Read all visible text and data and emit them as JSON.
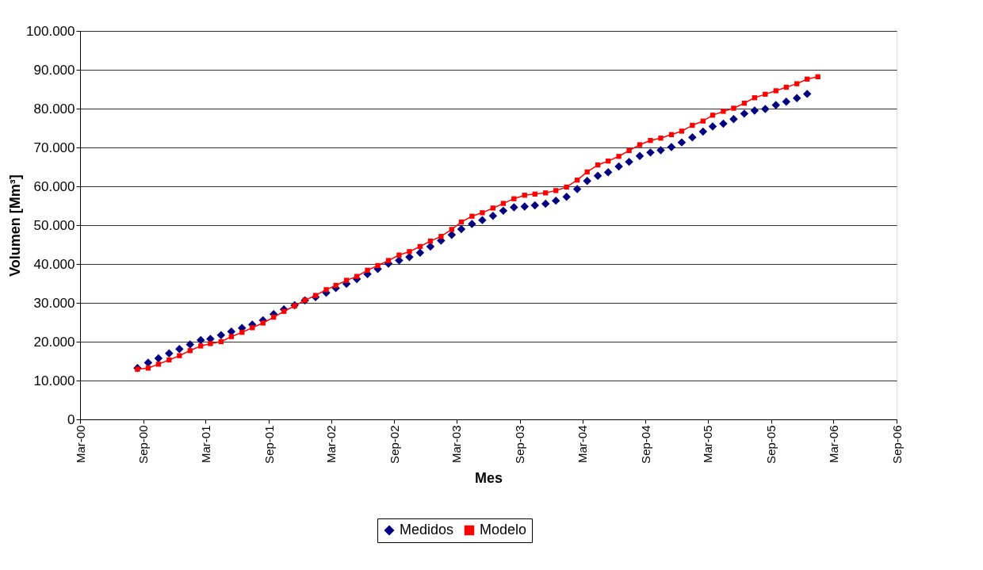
{
  "chart_data": {
    "type": "line",
    "xlabel": "Mes",
    "ylabel": "Volumen [Mm³]",
    "xlim": [
      "2000-03-01",
      "2006-09-01"
    ],
    "xticks": [
      {
        "value": "2000-03-01",
        "label": "Mar-00"
      },
      {
        "value": "2000-09-01",
        "label": "Sep-00"
      },
      {
        "value": "2001-03-01",
        "label": "Mar-01"
      },
      {
        "value": "2001-09-01",
        "label": "Sep-01"
      },
      {
        "value": "2002-03-01",
        "label": "Mar-02"
      },
      {
        "value": "2002-09-01",
        "label": "Sep-02"
      },
      {
        "value": "2003-03-01",
        "label": "Mar-03"
      },
      {
        "value": "2003-09-01",
        "label": "Sep-03"
      },
      {
        "value": "2004-03-01",
        "label": "Mar-04"
      },
      {
        "value": "2004-09-01",
        "label": "Sep-04"
      },
      {
        "value": "2005-03-01",
        "label": "Mar-05"
      },
      {
        "value": "2005-09-01",
        "label": "Sep-05"
      },
      {
        "value": "2006-03-01",
        "label": "Mar-06"
      },
      {
        "value": "2006-09-01",
        "label": "Sep-06"
      }
    ],
    "ylim": [
      0,
      100000
    ],
    "yticks": [
      0,
      {
        "value": 10000,
        "label": "10.000"
      },
      {
        "value": 20000,
        "label": "20.000"
      },
      {
        "value": 30000,
        "label": "30.000"
      },
      {
        "value": 40000,
        "label": "40.000"
      },
      {
        "value": 50000,
        "label": "50.000"
      },
      {
        "value": 60000,
        "label": "60.000"
      },
      {
        "value": 70000,
        "label": "70.000"
      },
      {
        "value": 80000,
        "label": "80.000"
      },
      {
        "value": 90000,
        "label": "90.000"
      },
      {
        "value": 100000,
        "label": "100.000"
      }
    ],
    "grid": "y",
    "legend": "bottom",
    "series": [
      {
        "name": "Medidos",
        "type": "scatter",
        "marker": "diamond",
        "color": "#000080",
        "x": [
          "2000-08-15",
          "2000-09-15",
          "2000-10-15",
          "2000-11-15",
          "2000-12-15",
          "2001-01-15",
          "2001-02-15",
          "2001-03-15",
          "2001-04-15",
          "2001-05-15",
          "2001-06-15",
          "2001-07-15",
          "2001-08-15",
          "2001-09-15",
          "2001-10-15",
          "2001-11-15",
          "2001-12-15",
          "2002-01-15",
          "2002-02-15",
          "2002-03-15",
          "2002-04-15",
          "2002-05-15",
          "2002-06-15",
          "2002-07-15",
          "2002-08-15",
          "2002-09-15",
          "2002-10-15",
          "2002-11-15",
          "2002-12-15",
          "2003-01-15",
          "2003-02-15",
          "2003-03-15",
          "2003-04-15",
          "2003-05-15",
          "2003-06-15",
          "2003-07-15",
          "2003-08-15",
          "2003-09-15",
          "2003-10-15",
          "2003-11-15",
          "2003-12-15",
          "2004-01-15",
          "2004-02-15",
          "2004-03-15",
          "2004-04-15",
          "2004-05-15",
          "2004-06-15",
          "2004-07-15",
          "2004-08-15",
          "2004-09-15",
          "2004-10-15",
          "2004-11-15",
          "2004-12-15",
          "2005-01-15",
          "2005-02-15",
          "2005-03-15",
          "2005-04-15",
          "2005-05-15",
          "2005-06-15",
          "2005-07-15",
          "2005-08-15",
          "2005-09-15",
          "2005-10-15",
          "2005-11-15",
          "2005-12-15"
        ],
        "values": [
          13200,
          14600,
          15700,
          17000,
          18100,
          19300,
          20400,
          20700,
          21700,
          22600,
          23500,
          24400,
          25500,
          27100,
          28300,
          29400,
          30600,
          31500,
          32600,
          33800,
          34900,
          36100,
          37400,
          38700,
          40100,
          40900,
          41800,
          42900,
          44500,
          46000,
          47500,
          49000,
          50300,
          51300,
          52400,
          53700,
          54600,
          54800,
          55100,
          55500,
          56300,
          57300,
          59300,
          61400,
          62700,
          63600,
          65100,
          66300,
          67800,
          68700,
          69300,
          70100,
          71300,
          72600,
          74100,
          75400,
          76100,
          77300,
          78700,
          79500,
          79900,
          80900,
          81800,
          82700,
          83800
        ]
      },
      {
        "name": "Modelo",
        "type": "line",
        "marker": "square",
        "line_style": "solid",
        "color": "#ff0000",
        "values": [
          12900,
          13200,
          14200,
          15300,
          16400,
          17700,
          18900,
          19500,
          20000,
          21300,
          22400,
          23600,
          24800,
          26300,
          27800,
          29200,
          30700,
          31900,
          33400,
          34500,
          35800,
          36800,
          38400,
          39600,
          40900,
          42300,
          43200,
          44500,
          45900,
          47100,
          48900,
          50800,
          52300,
          53200,
          54400,
          55600,
          56800,
          57700,
          58000,
          58300,
          58900,
          59800,
          61600,
          63700,
          65500,
          66500,
          67700,
          69200,
          70700,
          71800,
          72400,
          73300,
          74200,
          75700,
          76800,
          78300,
          79300,
          80100,
          81400,
          82800,
          83700,
          84600,
          85500,
          86400,
          87600,
          88200
        ]
      }
    ],
    "x": [
      "2000-08-15",
      "2000-09-15",
      "2000-10-15",
      "2000-11-15",
      "2000-12-15",
      "2001-01-15",
      "2001-02-15",
      "2001-03-15",
      "2001-04-15",
      "2001-05-15",
      "2001-06-15",
      "2001-07-15",
      "2001-08-15",
      "2001-09-15",
      "2001-10-15",
      "2001-11-15",
      "2001-12-15",
      "2002-01-15",
      "2002-02-15",
      "2002-03-15",
      "2002-04-15",
      "2002-05-15",
      "2002-06-15",
      "2002-07-15",
      "2002-08-15",
      "2002-09-15",
      "2002-10-15",
      "2002-11-15",
      "2002-12-15",
      "2003-01-15",
      "2003-02-15",
      "2003-03-15",
      "2003-04-15",
      "2003-05-15",
      "2003-06-15",
      "2003-07-15",
      "2003-08-15",
      "2003-09-15",
      "2003-10-15",
      "2003-11-15",
      "2003-12-15",
      "2004-01-15",
      "2004-02-15",
      "2004-03-15",
      "2004-04-15",
      "2004-05-15",
      "2004-06-15",
      "2004-07-15",
      "2004-08-15",
      "2004-09-15",
      "2004-10-15",
      "2004-11-15",
      "2004-12-15",
      "2005-01-15",
      "2005-02-15",
      "2005-03-15",
      "2005-04-15",
      "2005-05-15",
      "2005-06-15",
      "2005-07-15",
      "2005-08-15",
      "2005-09-15",
      "2005-10-15",
      "2005-11-15",
      "2005-12-15",
      "2006-01-15"
    ]
  }
}
